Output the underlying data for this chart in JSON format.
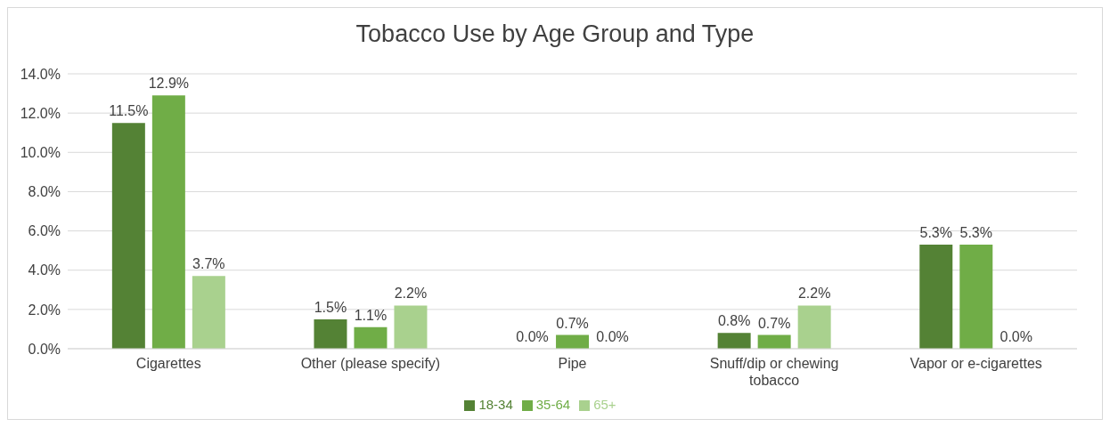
{
  "chart_data": {
    "type": "bar",
    "title": "Tobacco Use by Age Group and Type",
    "categories": [
      "Cigarettes",
      "Other (please specify)",
      "Pipe",
      "Snuff/dip or chewing tobacco",
      "Vapor or e-cigarettes"
    ],
    "series": [
      {
        "name": "18-34",
        "color": "#548235",
        "values": [
          11.5,
          1.5,
          0.0,
          0.8,
          5.3
        ],
        "value_labels": [
          "11.5%",
          "1.5%",
          "0.0%",
          "0.8%",
          "5.3%"
        ]
      },
      {
        "name": "35-64",
        "color": "#70ad47",
        "values": [
          12.9,
          1.1,
          0.7,
          0.7,
          5.3
        ],
        "value_labels": [
          "12.9%",
          "1.1%",
          "0.7%",
          "0.7%",
          "5.3%"
        ]
      },
      {
        "name": "65+",
        "color": "#a9d18e",
        "values": [
          3.7,
          2.2,
          0.0,
          2.2,
          0.0
        ],
        "value_labels": [
          "3.7%",
          "2.2%",
          "0.0%",
          "2.2%",
          "0.0%"
        ]
      }
    ],
    "ylim": [
      0,
      14
    ],
    "yticks": [
      {
        "value": 0,
        "label": "0.0%"
      },
      {
        "value": 2,
        "label": "2.0%"
      },
      {
        "value": 4,
        "label": "4.0%"
      },
      {
        "value": 6,
        "label": "6.0%"
      },
      {
        "value": 8,
        "label": "8.0%"
      },
      {
        "value": 10,
        "label": "10.0%"
      },
      {
        "value": 12,
        "label": "12.0%"
      },
      {
        "value": 14,
        "label": "14.0%"
      }
    ],
    "grid": "y",
    "legend": "bottom"
  }
}
